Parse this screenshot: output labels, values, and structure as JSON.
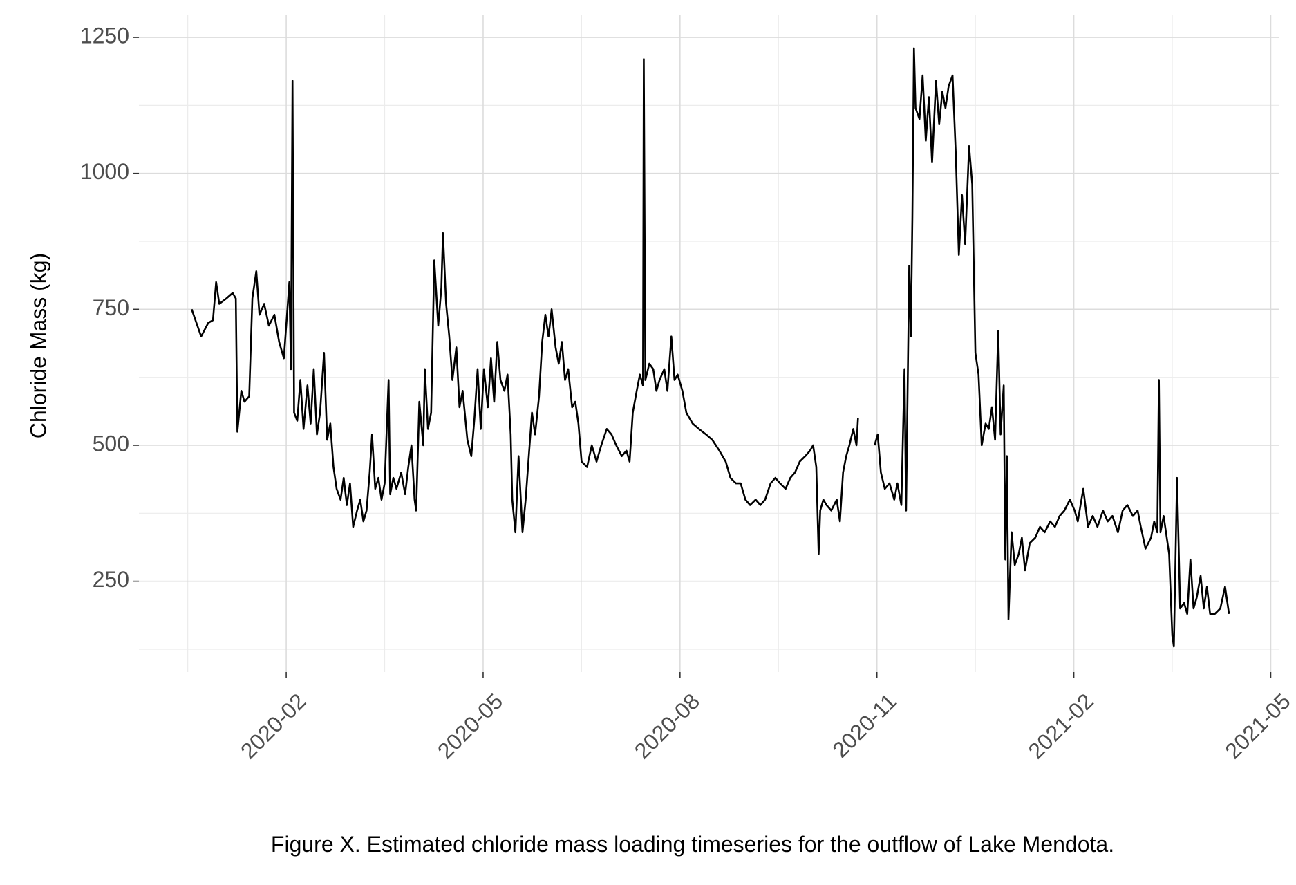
{
  "chart_data": {
    "type": "line",
    "y_label": "Chloride Mass (kg)",
    "caption": "Figure X. Estimated chloride mass loading timeseries for the outflow of Lake Mendota.",
    "color": "#000000",
    "grid": true,
    "xlim": [
      2019.896,
      2021.344
    ],
    "xticks": [
      {
        "value": 2020.083,
        "label": "2020-02"
      },
      {
        "value": 2020.333,
        "label": "2020-05"
      },
      {
        "value": 2020.583,
        "label": "2020-08"
      },
      {
        "value": 2020.833,
        "label": "2020-11"
      },
      {
        "value": 2021.083,
        "label": "2021-02"
      },
      {
        "value": 2021.333,
        "label": "2021-05"
      }
    ],
    "ylim": [
      83,
      1292
    ],
    "yticks": [
      250,
      500,
      750,
      1000,
      1250
    ],
    "x": [
      2019.963,
      2019.969,
      2019.975,
      2019.984,
      2019.99,
      2019.994,
      2019.998,
      2020.007,
      2020.015,
      2020.019,
      2020.021,
      2020.026,
      2020.03,
      2020.036,
      2020.04,
      2020.045,
      2020.049,
      2020.055,
      2020.061,
      2020.068,
      2020.074,
      2020.08,
      2020.084,
      2020.087,
      2020.089,
      2020.091,
      2020.093,
      2020.097,
      2020.101,
      2020.105,
      2020.11,
      2020.114,
      2020.118,
      2020.122,
      2020.126,
      2020.131,
      2020.135,
      2020.139,
      2020.143,
      2020.147,
      2020.152,
      2020.156,
      2020.16,
      2020.164,
      2020.168,
      2020.173,
      2020.177,
      2020.181,
      2020.185,
      2020.189,
      2020.192,
      2020.196,
      2020.2,
      2020.204,
      2020.208,
      2020.213,
      2020.215,
      2020.219,
      2020.223,
      2020.229,
      2020.234,
      2020.238,
      2020.242,
      2020.246,
      2020.248,
      2020.252,
      2020.257,
      2020.259,
      2020.263,
      2020.267,
      2020.271,
      2020.276,
      2020.28,
      2020.282,
      2020.286,
      2020.29,
      2020.294,
      2020.299,
      2020.303,
      2020.307,
      2020.313,
      2020.318,
      2020.322,
      2020.326,
      2020.33,
      2020.334,
      2020.339,
      2020.343,
      2020.347,
      2020.351,
      2020.355,
      2020.36,
      2020.364,
      2020.368,
      2020.37,
      2020.374,
      2020.378,
      2020.383,
      2020.387,
      2020.391,
      2020.395,
      2020.399,
      2020.404,
      2020.408,
      2020.412,
      2020.416,
      2020.42,
      2020.425,
      2020.429,
      2020.433,
      2020.437,
      2020.441,
      2020.446,
      2020.45,
      2020.454,
      2020.458,
      2020.465,
      2020.471,
      2020.477,
      2020.483,
      2020.49,
      2020.496,
      2020.502,
      2020.509,
      2020.515,
      2020.519,
      2020.523,
      2020.528,
      2020.532,
      2020.536,
      2020.537,
      2020.539,
      2020.544,
      2020.549,
      2020.553,
      2020.557,
      2020.563,
      2020.567,
      2020.572,
      2020.576,
      2020.58,
      2020.586,
      2020.591,
      2020.599,
      2020.607,
      2020.616,
      2020.624,
      2020.633,
      2020.641,
      2020.647,
      2020.654,
      2020.66,
      2020.666,
      2020.672,
      2020.679,
      2020.685,
      2020.691,
      2020.698,
      2020.704,
      2020.71,
      2020.717,
      2020.723,
      2020.729,
      2020.735,
      2020.742,
      2020.748,
      2020.752,
      2020.756,
      2020.759,
      2020.761,
      2020.765,
      2020.769,
      2020.775,
      2020.782,
      2020.786,
      2020.79,
      2020.794,
      2020.798,
      2020.803,
      2020.807,
      2020.809,
      2020.819,
      2020.83,
      2020.834,
      2020.838,
      2020.843,
      2020.849,
      2020.855,
      2020.859,
      2020.864,
      2020.868,
      2020.87,
      2020.874,
      2020.876,
      2020.878,
      2020.88,
      2020.882,
      2020.887,
      2020.891,
      2020.895,
      2020.899,
      2020.903,
      2020.908,
      2020.912,
      2020.916,
      2020.92,
      2020.924,
      2020.929,
      2020.933,
      2020.937,
      2020.941,
      2020.945,
      2020.95,
      2020.954,
      2020.958,
      2020.962,
      2020.966,
      2020.971,
      2020.975,
      2020.979,
      2020.983,
      2020.987,
      2020.99,
      2020.994,
      2020.996,
      2020.998,
      2021.0,
      2021.004,
      2021.008,
      2021.013,
      2021.017,
      2021.021,
      2021.027,
      2021.034,
      2021.04,
      2021.046,
      2021.053,
      2021.059,
      2021.065,
      2021.071,
      2021.078,
      2021.084,
      2021.088,
      2021.095,
      2021.101,
      2021.107,
      2021.113,
      2021.12,
      2021.126,
      2021.132,
      2021.139,
      2021.145,
      2021.151,
      2021.158,
      2021.164,
      2021.168,
      2021.174,
      2021.181,
      2021.185,
      2021.189,
      2021.191,
      2021.193,
      2021.197,
      2021.204,
      2021.208,
      2021.21,
      2021.214,
      2021.218,
      2021.223,
      2021.227,
      2021.231,
      2021.235,
      2021.239,
      2021.244,
      2021.248,
      2021.252,
      2021.256,
      2021.262,
      2021.269,
      2021.275,
      2021.28
    ],
    "values": [
      750,
      725,
      700,
      725,
      730,
      800,
      760,
      770,
      780,
      770,
      525,
      600,
      580,
      590,
      770,
      820,
      740,
      760,
      720,
      740,
      690,
      660,
      740,
      800,
      640,
      1170,
      560,
      545,
      620,
      530,
      610,
      540,
      640,
      520,
      560,
      670,
      510,
      540,
      460,
      420,
      400,
      440,
      390,
      430,
      350,
      380,
      400,
      360,
      380,
      450,
      520,
      420,
      440,
      400,
      430,
      620,
      410,
      440,
      420,
      450,
      410,
      460,
      500,
      400,
      380,
      580,
      500,
      640,
      530,
      560,
      840,
      720,
      790,
      890,
      760,
      700,
      620,
      680,
      570,
      600,
      510,
      480,
      550,
      640,
      530,
      640,
      570,
      660,
      580,
      690,
      620,
      600,
      630,
      520,
      400,
      340,
      480,
      340,
      400,
      480,
      560,
      520,
      590,
      690,
      740,
      700,
      750,
      680,
      650,
      690,
      620,
      640,
      570,
      580,
      540,
      470,
      460,
      500,
      470,
      500,
      530,
      520,
      500,
      480,
      490,
      470,
      560,
      600,
      630,
      610,
      1210,
      620,
      650,
      640,
      600,
      620,
      640,
      600,
      700,
      620,
      630,
      600,
      560,
      540,
      530,
      520,
      510,
      490,
      470,
      440,
      430,
      430,
      400,
      390,
      400,
      390,
      400,
      430,
      440,
      430,
      420,
      440,
      450,
      470,
      480,
      490,
      500,
      460,
      300,
      380,
      400,
      390,
      380,
      400,
      360,
      450,
      480,
      500,
      530,
      500,
      550,
      null,
      500,
      520,
      450,
      420,
      430,
      400,
      430,
      390,
      640,
      380,
      830,
      700,
      920,
      1230,
      1120,
      1100,
      1180,
      1060,
      1140,
      1020,
      1170,
      1090,
      1150,
      1120,
      1160,
      1180,
      1040,
      850,
      960,
      870,
      1050,
      980,
      670,
      630,
      500,
      540,
      530,
      570,
      510,
      710,
      520,
      610,
      290,
      480,
      180,
      340,
      280,
      300,
      330,
      270,
      320,
      330,
      350,
      340,
      360,
      350,
      370,
      380,
      400,
      380,
      360,
      420,
      350,
      370,
      350,
      380,
      360,
      370,
      340,
      380,
      390,
      370,
      380,
      350,
      310,
      330,
      360,
      340,
      620,
      340,
      370,
      300,
      150,
      130,
      440,
      200,
      210,
      190,
      290,
      200,
      220,
      260,
      200,
      240,
      190,
      190,
      200,
      240,
      190
    ]
  }
}
